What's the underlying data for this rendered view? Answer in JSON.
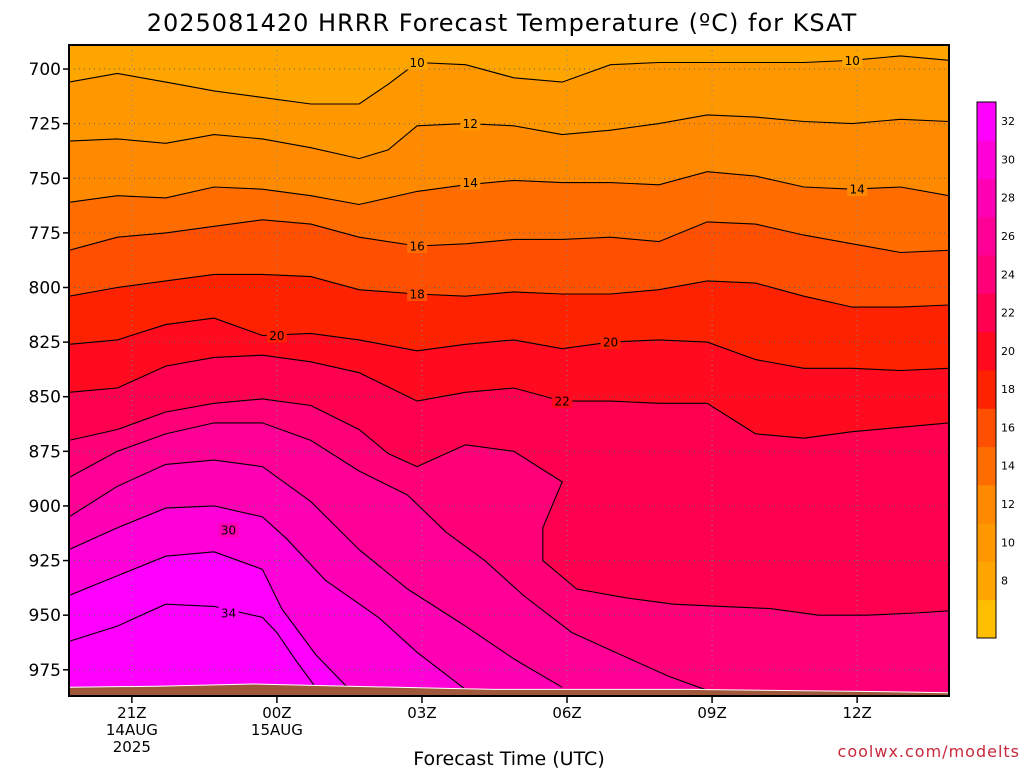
{
  "chart_data": {
    "type": "heatmap",
    "title": "2025081420 HRRR Forecast Temperature (ºC) for KSAT",
    "xlabel": "Forecast Time (UTC)",
    "ylabel": "",
    "credit": "coolwx.com/modelts",
    "y_axis": {
      "ticks": [
        700,
        725,
        750,
        775,
        800,
        825,
        850,
        875,
        900,
        925,
        950,
        975
      ],
      "ylim": [
        987,
        689
      ],
      "inverted": true
    },
    "x_axis": {
      "xlim": [
        19.7,
        37.9
      ],
      "ticks": [
        {
          "x": 21,
          "lines": [
            "21Z",
            "14AUG",
            "2025"
          ]
        },
        {
          "x": 24,
          "lines": [
            "00Z",
            "15AUG"
          ]
        },
        {
          "x": 27,
          "lines": [
            "03Z"
          ]
        },
        {
          "x": 30,
          "lines": [
            "06Z"
          ]
        },
        {
          "x": 33,
          "lines": [
            "09Z"
          ]
        },
        {
          "x": 36,
          "lines": [
            "12Z"
          ]
        }
      ]
    },
    "grid": true,
    "colorbar": {
      "levels": [
        6,
        8,
        10,
        12,
        14,
        16,
        18,
        20,
        22,
        24,
        26,
        28,
        30,
        32,
        34
      ],
      "labels": [
        8,
        10,
        12,
        14,
        16,
        18,
        20,
        22,
        24,
        26,
        28,
        30,
        32
      ],
      "colors": [
        "#ffbf00",
        "#ffa500",
        "#ff9800",
        "#ff8a00",
        "#ff6d00",
        "#ff4f00",
        "#ff2200",
        "#ff0a1e",
        "#ff0050",
        "#ff0078",
        "#ff0096",
        "#ff00b4",
        "#ff00d8",
        "#ff00ff"
      ]
    },
    "contours": [
      {
        "level": 10,
        "label": "10",
        "label_at": [
          [
            26.9,
            697
          ],
          [
            35.9,
            696
          ]
        ],
        "points": [
          [
            19.7,
            706
          ],
          [
            20.7,
            702
          ],
          [
            21.7,
            706
          ],
          [
            22.7,
            710
          ],
          [
            23.7,
            713
          ],
          [
            24.7,
            716
          ],
          [
            25.7,
            716
          ],
          [
            26.3,
            707
          ],
          [
            26.9,
            697
          ],
          [
            27.9,
            698
          ],
          [
            28.9,
            704
          ],
          [
            29.9,
            706
          ],
          [
            30.9,
            698
          ],
          [
            31.9,
            697
          ],
          [
            32.9,
            697
          ],
          [
            33.9,
            697
          ],
          [
            34.9,
            697
          ],
          [
            35.9,
            696
          ],
          [
            36.9,
            694
          ],
          [
            37.9,
            696
          ]
        ]
      },
      {
        "level": 12,
        "label": "12",
        "label_at": [
          [
            28.0,
            725
          ]
        ],
        "points": [
          [
            19.7,
            733
          ],
          [
            20.7,
            732
          ],
          [
            21.7,
            734
          ],
          [
            22.7,
            730
          ],
          [
            23.7,
            732
          ],
          [
            24.7,
            736
          ],
          [
            25.7,
            741
          ],
          [
            26.3,
            737
          ],
          [
            26.9,
            726
          ],
          [
            27.9,
            725
          ],
          [
            28.9,
            726
          ],
          [
            29.9,
            730
          ],
          [
            30.9,
            728
          ],
          [
            31.9,
            725
          ],
          [
            32.9,
            721
          ],
          [
            33.9,
            722
          ],
          [
            34.9,
            724
          ],
          [
            35.9,
            725
          ],
          [
            36.9,
            723
          ],
          [
            37.9,
            724
          ]
        ]
      },
      {
        "level": 14,
        "label": "14",
        "label_at": [
          [
            28.0,
            752
          ],
          [
            36.0,
            755
          ]
        ],
        "points": [
          [
            19.7,
            761
          ],
          [
            20.7,
            758
          ],
          [
            21.7,
            759
          ],
          [
            22.7,
            754
          ],
          [
            23.7,
            755
          ],
          [
            24.7,
            758
          ],
          [
            25.7,
            762
          ],
          [
            26.9,
            756
          ],
          [
            27.9,
            753
          ],
          [
            28.9,
            751
          ],
          [
            29.9,
            752
          ],
          [
            30.9,
            752
          ],
          [
            31.9,
            753
          ],
          [
            32.9,
            747
          ],
          [
            33.9,
            749
          ],
          [
            34.9,
            754
          ],
          [
            35.9,
            755
          ],
          [
            36.9,
            754
          ],
          [
            37.9,
            758
          ]
        ]
      },
      {
        "level": 16,
        "label": "16",
        "label_at": [
          [
            26.9,
            781
          ]
        ],
        "points": [
          [
            19.7,
            783
          ],
          [
            20.7,
            777
          ],
          [
            21.7,
            775
          ],
          [
            22.7,
            772
          ],
          [
            23.7,
            769
          ],
          [
            24.7,
            771
          ],
          [
            25.7,
            777
          ],
          [
            26.9,
            781
          ],
          [
            27.9,
            780
          ],
          [
            28.9,
            778
          ],
          [
            29.9,
            778
          ],
          [
            30.9,
            777
          ],
          [
            31.9,
            779
          ],
          [
            32.9,
            770
          ],
          [
            33.9,
            771
          ],
          [
            34.9,
            776
          ],
          [
            35.9,
            780
          ],
          [
            36.9,
            784
          ],
          [
            37.9,
            783
          ]
        ]
      },
      {
        "level": 18,
        "label": "18",
        "label_at": [
          [
            26.9,
            803
          ]
        ],
        "points": [
          [
            19.7,
            804
          ],
          [
            20.7,
            800
          ],
          [
            21.7,
            797
          ],
          [
            22.7,
            794
          ],
          [
            23.7,
            794
          ],
          [
            24.7,
            795
          ],
          [
            25.7,
            801
          ],
          [
            26.9,
            803
          ],
          [
            27.9,
            804
          ],
          [
            28.9,
            802
          ],
          [
            29.9,
            803
          ],
          [
            30.9,
            803
          ],
          [
            31.9,
            801
          ],
          [
            32.9,
            797
          ],
          [
            33.9,
            798
          ],
          [
            34.9,
            804
          ],
          [
            35.9,
            809
          ],
          [
            36.9,
            809
          ],
          [
            37.9,
            808
          ]
        ]
      },
      {
        "level": 20,
        "label": "20",
        "label_at": [
          [
            24.0,
            822
          ],
          [
            30.9,
            825
          ]
        ],
        "points": [
          [
            19.7,
            826
          ],
          [
            20.7,
            824
          ],
          [
            21.7,
            817
          ],
          [
            22.7,
            814
          ],
          [
            23.7,
            822
          ],
          [
            24.7,
            821
          ],
          [
            25.7,
            824
          ],
          [
            26.9,
            829
          ],
          [
            27.9,
            826
          ],
          [
            28.9,
            824
          ],
          [
            29.9,
            828
          ],
          [
            30.9,
            825
          ],
          [
            31.9,
            824
          ],
          [
            32.9,
            825
          ],
          [
            33.9,
            833
          ],
          [
            34.9,
            837
          ],
          [
            35.9,
            837
          ],
          [
            36.9,
            838
          ],
          [
            37.9,
            837
          ]
        ]
      },
      {
        "level": 22,
        "label": "22",
        "label_at": [
          [
            29.9,
            852
          ]
        ],
        "points": [
          [
            19.7,
            848
          ],
          [
            20.7,
            846
          ],
          [
            21.7,
            836
          ],
          [
            22.7,
            832
          ],
          [
            23.7,
            831
          ],
          [
            24.7,
            834
          ],
          [
            25.7,
            839
          ],
          [
            26.9,
            852
          ],
          [
            27.9,
            848
          ],
          [
            28.9,
            846
          ],
          [
            29.9,
            852
          ],
          [
            30.9,
            852
          ],
          [
            31.9,
            853
          ],
          [
            32.9,
            853
          ],
          [
            33.9,
            867
          ],
          [
            34.9,
            869
          ],
          [
            35.9,
            866
          ],
          [
            36.9,
            864
          ],
          [
            37.9,
            862
          ]
        ]
      },
      {
        "level": 24,
        "label": "",
        "points": [
          [
            19.7,
            870
          ],
          [
            20.7,
            865
          ],
          [
            21.7,
            857
          ],
          [
            22.7,
            853
          ],
          [
            23.7,
            851
          ],
          [
            24.7,
            854
          ],
          [
            25.7,
            865
          ],
          [
            26.3,
            876
          ],
          [
            26.9,
            882
          ],
          [
            27.9,
            872
          ],
          [
            28.9,
            875
          ],
          [
            29.9,
            889
          ],
          [
            29.5,
            910
          ],
          [
            29.5,
            925
          ],
          [
            30.2,
            938
          ],
          [
            31.2,
            942
          ],
          [
            32.2,
            945
          ],
          [
            33.2,
            946
          ],
          [
            34.2,
            947
          ],
          [
            35.2,
            950
          ],
          [
            36.2,
            950
          ],
          [
            37.2,
            949
          ],
          [
            37.9,
            948
          ]
        ]
      },
      {
        "level": 26,
        "label": "",
        "points": [
          [
            19.7,
            887
          ],
          [
            20.7,
            875
          ],
          [
            21.7,
            867
          ],
          [
            22.7,
            862
          ],
          [
            23.7,
            862
          ],
          [
            24.7,
            870
          ],
          [
            25.7,
            884
          ],
          [
            26.7,
            895
          ],
          [
            27.5,
            912
          ],
          [
            28.3,
            925
          ],
          [
            29.1,
            941
          ],
          [
            30.1,
            958
          ],
          [
            31.1,
            968
          ],
          [
            32.1,
            978
          ],
          [
            33.1,
            986
          ]
        ]
      },
      {
        "level": 28,
        "label": "",
        "points": [
          [
            19.7,
            905
          ],
          [
            20.7,
            891
          ],
          [
            21.7,
            881
          ],
          [
            22.7,
            879
          ],
          [
            23.7,
            882
          ],
          [
            24.7,
            898
          ],
          [
            25.7,
            920
          ],
          [
            26.7,
            938
          ],
          [
            27.9,
            955
          ],
          [
            28.9,
            970
          ],
          [
            29.9,
            983
          ]
        ]
      },
      {
        "level": 30,
        "label": "30",
        "label_at": [
          [
            23.0,
            911
          ]
        ],
        "points": [
          [
            19.7,
            920
          ],
          [
            20.7,
            910
          ],
          [
            21.7,
            901
          ],
          [
            22.7,
            900
          ],
          [
            23.7,
            905
          ],
          [
            24.2,
            915
          ],
          [
            25.0,
            934
          ],
          [
            26.1,
            951
          ],
          [
            26.9,
            967
          ],
          [
            27.9,
            984
          ]
        ]
      },
      {
        "level": 32,
        "label": "",
        "points": [
          [
            19.7,
            941
          ],
          [
            20.7,
            932
          ],
          [
            21.7,
            923
          ],
          [
            22.7,
            921
          ],
          [
            23.7,
            929
          ],
          [
            24.1,
            947
          ],
          [
            24.8,
            968
          ],
          [
            25.5,
            984
          ]
        ]
      },
      {
        "level": 34,
        "label": "34",
        "label_at": [
          [
            23.0,
            949
          ]
        ],
        "points": [
          [
            19.7,
            962
          ],
          [
            20.7,
            955
          ],
          [
            21.7,
            945
          ],
          [
            22.7,
            946
          ],
          [
            23.7,
            951
          ],
          [
            24.0,
            958
          ],
          [
            24.4,
            971
          ],
          [
            24.8,
            983
          ]
        ]
      }
    ]
  }
}
